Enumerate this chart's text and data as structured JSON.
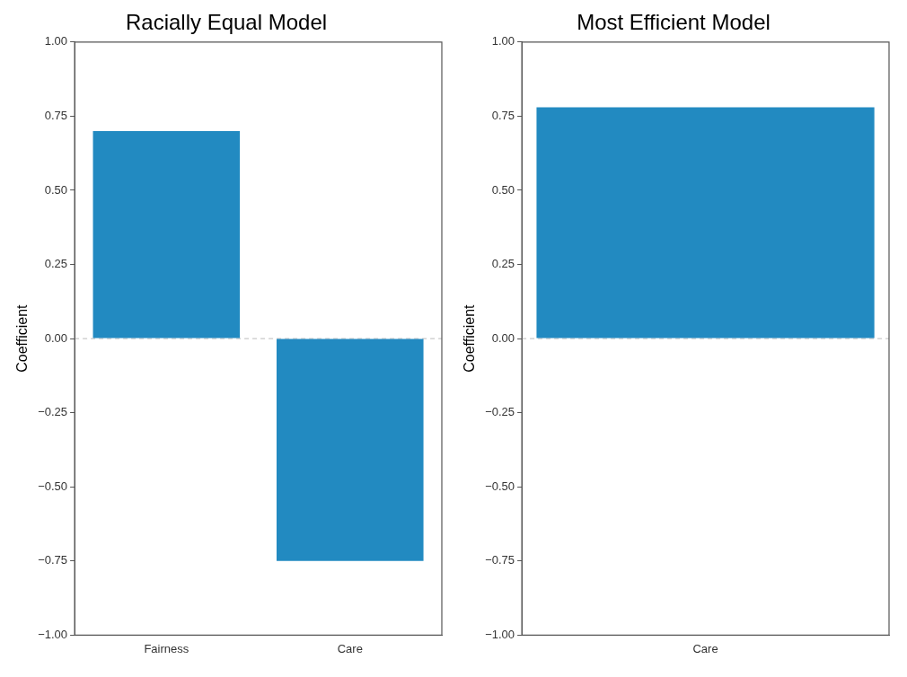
{
  "chart_data": [
    {
      "type": "bar",
      "title": "Racially Equal Model",
      "ylabel": "Coefficient",
      "categories": [
        "Fairness",
        "Care"
      ],
      "values": [
        0.7,
        -0.75
      ],
      "color": "#228ac1",
      "ylim": [
        -1,
        1
      ],
      "yticks": [
        {
          "value": -1,
          "label": "−1.00"
        },
        {
          "value": -0.75,
          "label": "−0.75"
        },
        {
          "value": -0.5,
          "label": "−0.50"
        },
        {
          "value": -0.25,
          "label": "−0.25"
        },
        {
          "value": 0,
          "label": "0.00"
        },
        {
          "value": 0.25,
          "label": "0.25"
        },
        {
          "value": 0.5,
          "label": "0.50"
        },
        {
          "value": 0.75,
          "label": "0.75"
        },
        {
          "value": 1,
          "label": "1.00"
        }
      ],
      "ref_lines": [
        {
          "axis": "y",
          "value": 0,
          "color": "#bbbbbb",
          "line_style": "dashed"
        }
      ],
      "grid": false,
      "legend": false
    },
    {
      "type": "bar",
      "title": "Most Efficient Model",
      "ylabel": "Coefficient",
      "categories": [
        "Care"
      ],
      "values": [
        0.78
      ],
      "color": "#228ac1",
      "ylim": [
        -1,
        1
      ],
      "yticks": [
        {
          "value": -1,
          "label": "−1.00"
        },
        {
          "value": -0.75,
          "label": "−0.75"
        },
        {
          "value": -0.5,
          "label": "−0.50"
        },
        {
          "value": -0.25,
          "label": "−0.25"
        },
        {
          "value": 0,
          "label": "0.00"
        },
        {
          "value": 0.25,
          "label": "0.25"
        },
        {
          "value": 0.5,
          "label": "0.50"
        },
        {
          "value": 0.75,
          "label": "0.75"
        },
        {
          "value": 1,
          "label": "1.00"
        }
      ],
      "ref_lines": [
        {
          "axis": "y",
          "value": 0,
          "color": "#bbbbbb",
          "line_style": "dashed"
        }
      ],
      "grid": false,
      "legend": false
    }
  ]
}
